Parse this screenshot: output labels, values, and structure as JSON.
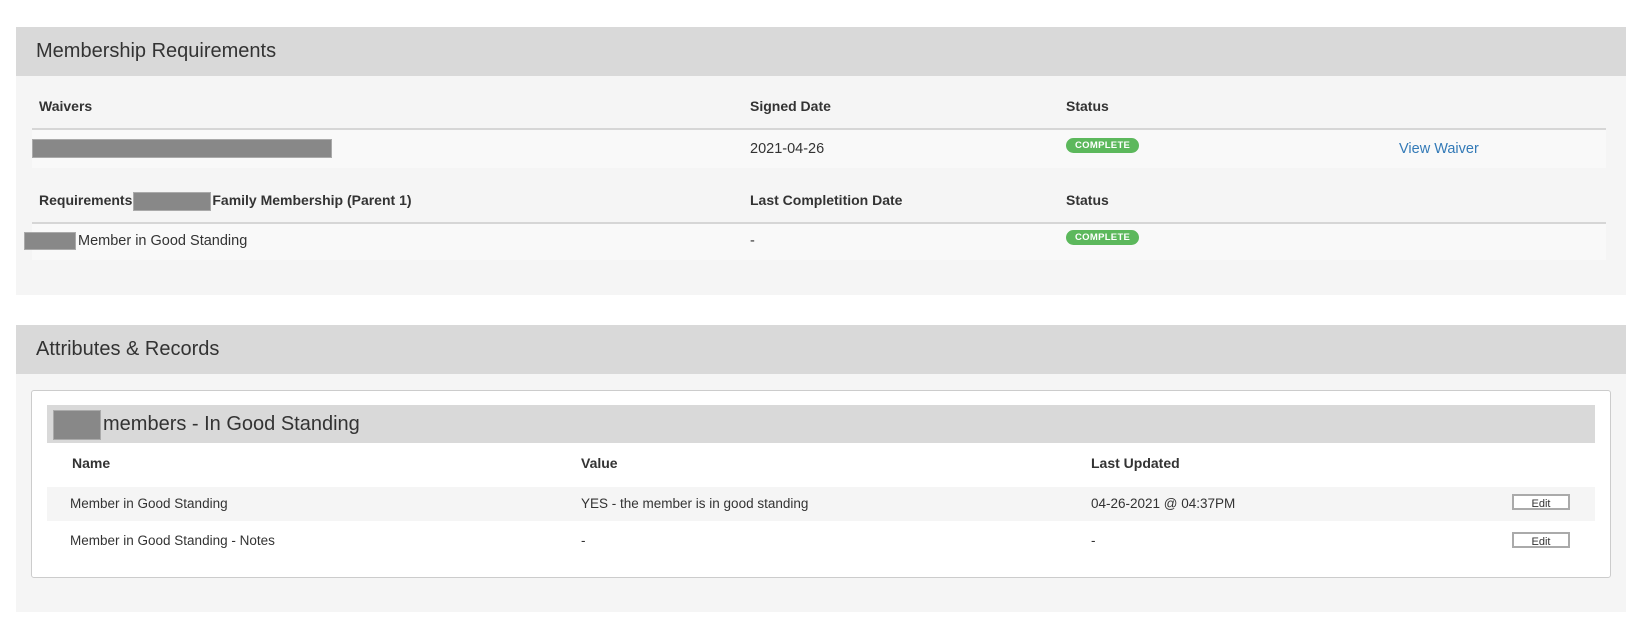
{
  "membership": {
    "title": "Membership Requirements",
    "waivers": {
      "headers": [
        "Waivers",
        "Signed Date",
        "Status"
      ],
      "rows": [
        {
          "signed_date": "2021-04-26",
          "status": "COMPLETE",
          "action": "View Waiver"
        }
      ]
    },
    "requirements": {
      "header_prefix": "Requirements",
      "header_suffix": "Family Membership (Parent 1)",
      "headers": [
        "Last Completition Date",
        "Status"
      ],
      "rows": [
        {
          "name": "Member in Good Standing",
          "date": "-",
          "status": "COMPLETE"
        }
      ]
    }
  },
  "attributes": {
    "title": "Attributes & Records",
    "group_title": "members - In Good Standing",
    "headers": [
      "Name",
      "Value",
      "Last Updated"
    ],
    "rows": [
      {
        "name": "Member in Good Standing",
        "value": "YES - the member is in good standing",
        "updated": "04-26-2021 @ 04:37PM",
        "action": "Edit"
      },
      {
        "name": "Member in Good Standing - Notes",
        "value": "-",
        "updated": "-",
        "action": "Edit"
      }
    ]
  },
  "colors": {
    "complete": "#5cb85c",
    "link": "#337ab7",
    "header_bg": "#d9d9d9"
  }
}
